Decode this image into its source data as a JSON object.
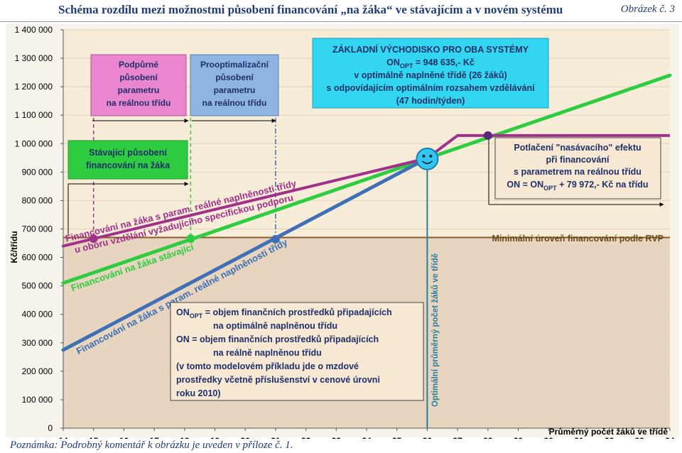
{
  "header": {
    "title": "Schéma rozdílu mezi možnostmi působení financování „na žáka“ ve stávajícím a v novém systému",
    "figure_label": "Obrázek č. 3"
  },
  "footer": {
    "note": "Poznámka: Podrobný komentář k obrázku je uveden v příloze č. 1."
  },
  "chart_data": {
    "type": "line",
    "xlabel": "Průměrný počet žáků ve třídě",
    "ylabel": "Kč/třídu",
    "xlim": [
      14,
      34
    ],
    "ylim": [
      0,
      1400000
    ],
    "x_ticks": [
      "14",
      "15",
      "16",
      "17",
      "18",
      "19",
      "20",
      "21",
      "22",
      "23",
      "24",
      "25",
      "26",
      "27",
      "28",
      "29",
      "30",
      "31",
      "32",
      "33",
      "34"
    ],
    "y_ticks": [
      "0",
      "100 000",
      "200 000",
      "300 000",
      "400 000",
      "500 000",
      "600 000",
      "700 000",
      "800 000",
      "900 000",
      "1 000 000",
      "1 100 000",
      "1 200 000",
      "1 300 000",
      "1 400 000"
    ],
    "minimum_level": {
      "y": 670000,
      "label": "Minimální úroveň financování podle RVP"
    },
    "optimum_line": {
      "x": 26,
      "label": "Optimální průměrný počet žáků ve třídě"
    },
    "series": [
      {
        "key": "current",
        "color": "#2ecc40",
        "label": "Financování na žáka stávající",
        "points": [
          [
            14,
            510000
          ],
          [
            34,
            1240000
          ]
        ],
        "marker": [
          18.2,
          666000
        ]
      },
      {
        "key": "real",
        "color": "#3f6fb5",
        "label": "Financování na žáka s param. reálné naplněnosti třídy",
        "points": [
          [
            14,
            275000
          ],
          [
            26,
            948635
          ]
        ],
        "marker": [
          21,
          664000
        ]
      },
      {
        "key": "specific",
        "color": "#a0308a",
        "label1": "Financování na žáka s param. reálné naplněnosti třídy",
        "label2": "u oboru vzdělání vyžadujícího specifickou podporu",
        "points": [
          [
            14,
            640000
          ],
          [
            26,
            948635
          ]
        ],
        "marker": [
          15,
          666000
        ]
      },
      {
        "key": "capped",
        "color": "#a0308a",
        "points": [
          [
            26,
            948635
          ],
          [
            27,
            1028607
          ],
          [
            34,
            1028607
          ]
        ],
        "marker": [
          28,
          1028607
        ]
      }
    ],
    "annotations": {
      "support": [
        "Podpůrné",
        "působení",
        "parametru",
        "na reálnou třídu"
      ],
      "proopt": [
        "Prooptimalizační",
        "působení",
        "parametru",
        "na  reálnou třídu"
      ],
      "current_box": [
        "Stávající působení",
        "financování na žáka"
      ],
      "basis": {
        "title": "ZÁKLADNÍ VÝCHODISKO PRO OBA SYSTÉMY",
        "on": "ON",
        "opt": "OPT",
        "value": " = 948 635,- Kč",
        "l3": "v optimálně naplněné třídě (26 žáků)",
        "l4": "s odpovídajícím optimálním rozsahem vzdělávání",
        "l5": "(47 hodin/týden)"
      },
      "suppress": {
        "l1": "Potlačení \"nasávacího\" efektu",
        "l2": "při financování",
        "l3": "s parametrem na reálnou třídu",
        "l4a": "ON = ON",
        "l4sub": "OPT",
        "l4b": " + 79 972,- Kč na třídu"
      },
      "legend": {
        "l1a": "ON",
        "l1sub": "OPT",
        "l1b": " = objem finančních prostředků připadajících",
        "l2": "na optimálně naplněnou třídu",
        "l3": "ON = objem finančních prostředků připadajících",
        "l4": "na reálně naplněnou třídu",
        "l5": "(v tomto modelovém příkladu jde o mzdové",
        "l6": "prostředky včetně příslušenství v cenové úrovni",
        "l7": "roku 2010)"
      }
    },
    "colors": {
      "area_fill": "#e8d5bf",
      "plot_bg": "#f7ecd8",
      "min_line": "#8b5a2b",
      "pink_box": "#e986cf",
      "blue_box": "#8db4e2",
      "cyan_box": "#33d6f0",
      "green_box": "#2ecc40",
      "optimum_line": "#2a7f9e"
    }
  }
}
